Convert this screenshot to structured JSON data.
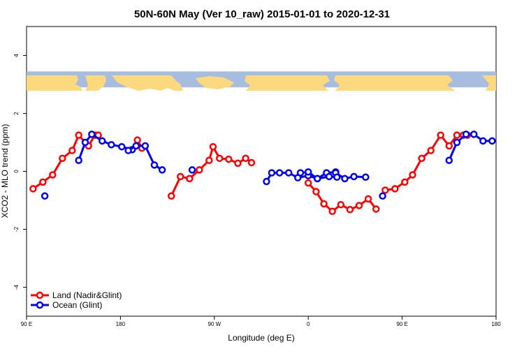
{
  "chart_data": {
    "type": "line",
    "title": "50N-60N May (Ver 10_raw)   2015-01-01 to 2020-12-31",
    "xlabel": "Longitude (deg E)",
    "ylabel": "XCO2 - MLO trend (ppm)",
    "xlim": [
      90,
      450
    ],
    "ylim": [
      -5,
      5
    ],
    "x_ticks": [
      90,
      162,
      234,
      306,
      378,
      450
    ],
    "x_tick_labels": [
      "90 E",
      "180",
      "90 W",
      "0",
      "90 E",
      "180"
    ],
    "y_ticks": [
      -4,
      -2,
      0,
      2,
      4
    ],
    "y_tick_labels": [
      "-4",
      "-2",
      "0",
      "2",
      "4"
    ],
    "map_strip_y": [
      2.9,
      3.45
    ],
    "map_colors": {
      "ocean": "#a7bde0",
      "land": "#fcd97e"
    },
    "legend_position": "bottom-left",
    "series": [
      {
        "name": "Land (Nadir&Glint)",
        "color": "#ff0000",
        "segments": [
          {
            "x": [
              95,
              102.5,
              110,
              117.5,
              125,
              130,
              137.5,
              142.5,
              145
            ],
            "y": [
              -0.6,
              -0.37,
              -0.12,
              0.45,
              0.72,
              1.25,
              0.88,
              1.25,
              1.25
            ]
          },
          {
            "x": [
              175,
              178.5
            ],
            "y": [
              1.08,
              0.8
            ]
          },
          {
            "x": [
              201,
              208,
              215,
              222.5,
              230,
              233,
              238,
              245,
              252,
              258,
              262.5
            ],
            "y": [
              -0.85,
              -0.18,
              -0.25,
              0.05,
              0.38,
              0.85,
              0.45,
              0.42,
              0.28,
              0.45,
              0.3
            ]
          },
          {
            "x": [
              306,
              312,
              318,
              324.5,
              331,
              338,
              345,
              352,
              358
            ],
            "y": [
              -0.4,
              -0.7,
              -1.12,
              -1.38,
              -1.15,
              -1.32,
              -1.18,
              -0.95,
              -1.3
            ]
          },
          {
            "x": [
              365,
              372.5,
              380,
              386,
              393,
              400,
              407.5,
              414,
              420,
              425,
              428
            ],
            "y": [
              -0.65,
              -0.6,
              -0.37,
              -0.12,
              0.45,
              0.72,
              1.25,
              0.88,
              1.25,
              1.25,
              1.25
            ]
          }
        ]
      },
      {
        "name": "Ocean (Glint)",
        "color": "#0000ee",
        "segments": [
          {
            "x": [
              104
            ],
            "y": [
              -0.85
            ]
          },
          {
            "x": [
              130,
              135,
              140,
              148,
              155,
              163,
              171
            ],
            "y": [
              0.38,
              1.0,
              1.28,
              1.05,
              0.92,
              0.85,
              0.75
            ]
          },
          {
            "x": [
              168,
              174,
              181,
              188,
              194
            ],
            "y": [
              0.72,
              0.88,
              0.88,
              0.22,
              0.05
            ]
          },
          {
            "x": [
              217
            ],
            "y": [
              0.05
            ]
          },
          {
            "x": [
              274,
              278,
              284,
              291,
              298,
              306,
              313,
              320,
              327
            ],
            "y": [
              -0.35,
              -0.05,
              -0.05,
              -0.05,
              -0.22,
              -0.15,
              -0.25,
              -0.05,
              -0.02
            ]
          },
          {
            "x": [
              327,
              334,
              341,
              350
            ],
            "y": [
              -0.05,
              -0.25,
              -0.18,
              -0.2
            ]
          },
          {
            "x": [
              300,
              306,
              313,
              322,
              328
            ],
            "y": [
              -0.05,
              -0.02,
              -0.25,
              -0.18,
              -0.2
            ]
          },
          {
            "x": [
              363
            ],
            "y": [
              -0.85
            ]
          },
          {
            "x": [
              414,
              420,
              427,
              433,
              440,
              447
            ],
            "y": [
              0.38,
              1.0,
              1.28,
              1.28,
              1.05,
              1.05
            ]
          }
        ]
      }
    ]
  }
}
